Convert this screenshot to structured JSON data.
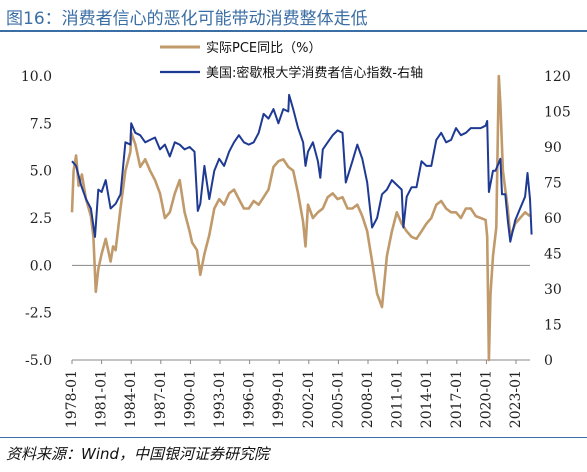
{
  "header": {
    "title": "图16：消费者信心的恶化可能带动消费整体走低"
  },
  "footer": {
    "source": "资料来源：Wind，中国银河证券研究院"
  },
  "chart_data": {
    "type": "line",
    "x_range": [
      "1978-01",
      "2024-06"
    ],
    "x_ticks": [
      "1978-01",
      "1981-01",
      "1984-01",
      "1987-01",
      "1990-01",
      "1993-01",
      "1996-01",
      "1999-01",
      "2002-01",
      "2005-01",
      "2008-01",
      "2011-01",
      "2014-01",
      "2017-01",
      "2020-01",
      "2023-01"
    ],
    "y_left": {
      "min": -5,
      "max": 10,
      "ticks": [
        "-5.0",
        "-2.5",
        "0.0",
        "2.5",
        "5.0",
        "7.5",
        "10.0"
      ]
    },
    "y_right": {
      "min": 0,
      "max": 120,
      "ticks": [
        "0",
        "15",
        "30",
        "45",
        "60",
        "75",
        "90",
        "105",
        "120"
      ]
    },
    "legend": {
      "position": "top-center"
    },
    "series": [
      {
        "name": "实际PCE同比（%）",
        "axis": "left",
        "color": "#c19a6b",
        "points": [
          [
            "1978-01",
            2.8
          ],
          [
            "1978-03",
            5.0
          ],
          [
            "1978-06",
            5.8
          ],
          [
            "1978-09",
            4.2
          ],
          [
            "1979-01",
            4.8
          ],
          [
            "1979-06",
            3.5
          ],
          [
            "1979-12",
            2.6
          ],
          [
            "1980-03",
            1.5
          ],
          [
            "1980-06",
            -1.4
          ],
          [
            "1980-09",
            -0.2
          ],
          [
            "1981-01",
            0.6
          ],
          [
            "1981-06",
            1.4
          ],
          [
            "1981-12",
            0.2
          ],
          [
            "1982-03",
            1.0
          ],
          [
            "1982-06",
            0.8
          ],
          [
            "1982-12",
            3.0
          ],
          [
            "1983-06",
            5.0
          ],
          [
            "1983-12",
            6.0
          ],
          [
            "1984-01",
            7.0
          ],
          [
            "1984-06",
            6.4
          ],
          [
            "1984-12",
            5.2
          ],
          [
            "1985-06",
            5.6
          ],
          [
            "1985-12",
            5.0
          ],
          [
            "1986-06",
            4.5
          ],
          [
            "1986-12",
            3.8
          ],
          [
            "1987-06",
            2.5
          ],
          [
            "1987-12",
            2.8
          ],
          [
            "1988-06",
            3.8
          ],
          [
            "1988-12",
            4.5
          ],
          [
            "1989-06",
            2.8
          ],
          [
            "1989-12",
            1.8
          ],
          [
            "1990-03",
            1.2
          ],
          [
            "1990-09",
            0.8
          ],
          [
            "1991-01",
            -0.5
          ],
          [
            "1991-06",
            0.6
          ],
          [
            "1991-12",
            1.6
          ],
          [
            "1992-06",
            3.0
          ],
          [
            "1992-12",
            3.5
          ],
          [
            "1993-06",
            3.2
          ],
          [
            "1993-12",
            3.8
          ],
          [
            "1994-06",
            4.0
          ],
          [
            "1994-12",
            3.5
          ],
          [
            "1995-06",
            3.0
          ],
          [
            "1995-12",
            3.0
          ],
          [
            "1996-06",
            3.4
          ],
          [
            "1996-12",
            3.2
          ],
          [
            "1997-06",
            3.6
          ],
          [
            "1997-12",
            4.0
          ],
          [
            "1998-06",
            5.2
          ],
          [
            "1998-12",
            5.5
          ],
          [
            "1999-06",
            5.6
          ],
          [
            "1999-12",
            5.2
          ],
          [
            "2000-06",
            5.0
          ],
          [
            "2000-12",
            3.8
          ],
          [
            "2001-06",
            2.3
          ],
          [
            "2001-09",
            1.0
          ],
          [
            "2001-12",
            3.2
          ],
          [
            "2002-06",
            2.5
          ],
          [
            "2002-12",
            2.8
          ],
          [
            "2003-06",
            3.0
          ],
          [
            "2003-12",
            3.6
          ],
          [
            "2004-06",
            3.8
          ],
          [
            "2004-12",
            3.5
          ],
          [
            "2005-06",
            3.6
          ],
          [
            "2005-12",
            3.0
          ],
          [
            "2006-06",
            3.0
          ],
          [
            "2006-12",
            3.2
          ],
          [
            "2007-06",
            2.6
          ],
          [
            "2007-12",
            1.8
          ],
          [
            "2008-06",
            0.2
          ],
          [
            "2008-12",
            -1.5
          ],
          [
            "2009-06",
            -2.2
          ],
          [
            "2009-12",
            0.5
          ],
          [
            "2010-06",
            1.8
          ],
          [
            "2010-12",
            2.8
          ],
          [
            "2011-06",
            2.2
          ],
          [
            "2011-12",
            1.8
          ],
          [
            "2012-06",
            1.5
          ],
          [
            "2012-12",
            1.4
          ],
          [
            "2013-06",
            1.8
          ],
          [
            "2013-12",
            2.2
          ],
          [
            "2014-06",
            2.5
          ],
          [
            "2014-12",
            3.2
          ],
          [
            "2015-06",
            3.4
          ],
          [
            "2015-12",
            3.0
          ],
          [
            "2016-06",
            2.8
          ],
          [
            "2016-12",
            2.8
          ],
          [
            "2017-06",
            2.5
          ],
          [
            "2017-12",
            3.0
          ],
          [
            "2018-06",
            3.0
          ],
          [
            "2018-12",
            2.6
          ],
          [
            "2019-06",
            2.5
          ],
          [
            "2019-12",
            2.4
          ],
          [
            "2020-02",
            1.5
          ],
          [
            "2020-04",
            -5.0
          ],
          [
            "2020-06",
            -1.5
          ],
          [
            "2020-09",
            0.5
          ],
          [
            "2021-01",
            2.0
          ],
          [
            "2021-04",
            10.0
          ],
          [
            "2021-06",
            8.5
          ],
          [
            "2021-09",
            5.0
          ],
          [
            "2021-12",
            4.0
          ],
          [
            "2022-03",
            3.0
          ],
          [
            "2022-06",
            1.5
          ],
          [
            "2022-12",
            2.2
          ],
          [
            "2023-06",
            2.5
          ],
          [
            "2023-12",
            2.8
          ],
          [
            "2024-06",
            2.6
          ]
        ]
      },
      {
        "name": "美国:密歇根大学消费者信心指数-右轴",
        "axis": "right",
        "color": "#1f3a93",
        "points": [
          [
            "1978-01",
            84
          ],
          [
            "1978-06",
            82
          ],
          [
            "1978-12",
            74
          ],
          [
            "1979-06",
            68
          ],
          [
            "1979-12",
            64
          ],
          [
            "1980-05",
            52
          ],
          [
            "1980-09",
            72
          ],
          [
            "1981-01",
            71
          ],
          [
            "1981-06",
            76
          ],
          [
            "1981-12",
            64
          ],
          [
            "1982-06",
            66
          ],
          [
            "1982-12",
            70
          ],
          [
            "1983-06",
            92
          ],
          [
            "1983-12",
            91
          ],
          [
            "1984-01",
            100
          ],
          [
            "1984-06",
            96
          ],
          [
            "1984-12",
            95
          ],
          [
            "1985-06",
            92
          ],
          [
            "1985-12",
            93
          ],
          [
            "1986-06",
            94
          ],
          [
            "1986-12",
            89
          ],
          [
            "1987-06",
            91
          ],
          [
            "1987-12",
            86
          ],
          [
            "1988-06",
            92
          ],
          [
            "1988-12",
            91
          ],
          [
            "1989-06",
            89
          ],
          [
            "1989-12",
            90
          ],
          [
            "1990-06",
            88
          ],
          [
            "1990-10",
            63
          ],
          [
            "1991-01",
            66
          ],
          [
            "1991-06",
            82
          ],
          [
            "1991-12",
            68
          ],
          [
            "1992-06",
            80
          ],
          [
            "1992-12",
            85
          ],
          [
            "1993-06",
            82
          ],
          [
            "1993-12",
            88
          ],
          [
            "1994-06",
            92
          ],
          [
            "1994-12",
            95
          ],
          [
            "1995-06",
            92
          ],
          [
            "1995-12",
            91
          ],
          [
            "1996-06",
            92
          ],
          [
            "1996-12",
            96
          ],
          [
            "1997-06",
            104
          ],
          [
            "1997-12",
            102
          ],
          [
            "1998-06",
            106
          ],
          [
            "1998-12",
            100
          ],
          [
            "1999-06",
            106
          ],
          [
            "1999-12",
            105
          ],
          [
            "2000-01",
            112
          ],
          [
            "2000-06",
            106
          ],
          [
            "2000-12",
            98
          ],
          [
            "2001-06",
            92
          ],
          [
            "2001-09",
            82
          ],
          [
            "2001-12",
            88
          ],
          [
            "2002-06",
            92
          ],
          [
            "2002-12",
            84
          ],
          [
            "2003-03",
            77
          ],
          [
            "2003-06",
            89
          ],
          [
            "2003-12",
            92
          ],
          [
            "2004-06",
            95
          ],
          [
            "2004-12",
            97
          ],
          [
            "2005-06",
            96
          ],
          [
            "2005-10",
            75
          ],
          [
            "2006-06",
            84
          ],
          [
            "2006-12",
            91
          ],
          [
            "2007-06",
            85
          ],
          [
            "2007-12",
            75
          ],
          [
            "2008-06",
            56
          ],
          [
            "2008-12",
            60
          ],
          [
            "2009-06",
            70
          ],
          [
            "2009-12",
            72
          ],
          [
            "2010-06",
            76
          ],
          [
            "2010-12",
            74
          ],
          [
            "2011-06",
            72
          ],
          [
            "2011-08",
            56
          ],
          [
            "2011-12",
            69
          ],
          [
            "2012-06",
            73
          ],
          [
            "2012-12",
            73
          ],
          [
            "2013-06",
            84
          ],
          [
            "2013-12",
            82
          ],
          [
            "2014-06",
            82
          ],
          [
            "2014-12",
            93
          ],
          [
            "2015-06",
            96
          ],
          [
            "2015-12",
            92
          ],
          [
            "2016-06",
            93
          ],
          [
            "2016-12",
            98
          ],
          [
            "2017-06",
            95
          ],
          [
            "2017-12",
            96
          ],
          [
            "2018-06",
            98
          ],
          [
            "2018-12",
            98
          ],
          [
            "2019-06",
            98
          ],
          [
            "2019-12",
            99
          ],
          [
            "2020-02",
            101
          ],
          [
            "2020-04",
            71
          ],
          [
            "2020-09",
            80
          ],
          [
            "2020-12",
            80
          ],
          [
            "2021-06",
            85
          ],
          [
            "2021-08",
            70
          ],
          [
            "2021-12",
            70
          ],
          [
            "2022-03",
            59
          ],
          [
            "2022-06",
            50
          ],
          [
            "2022-12",
            59
          ],
          [
            "2023-06",
            64
          ],
          [
            "2023-12",
            69
          ],
          [
            "2024-03",
            79
          ],
          [
            "2024-06",
            68
          ],
          [
            "2024-08",
            53
          ]
        ]
      }
    ]
  }
}
